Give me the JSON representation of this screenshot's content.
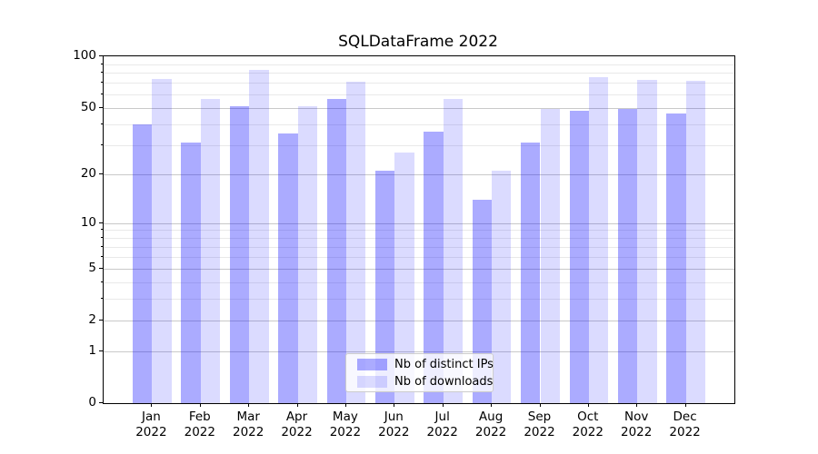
{
  "title": "SQLDataFrame 2022",
  "colors": {
    "distinct_ips_fill": "rgba(0,0,255,0.33)",
    "downloads_fill": "rgba(0,0,255,0.14)",
    "distinct_ips_hex": "#aaaaf8",
    "downloads_hex": "#dcdcfa",
    "major_grid": "#c9c9c9",
    "minor_grid": "#e9e9e9",
    "axis": "#000000"
  },
  "legend": {
    "entries": [
      "Nb of distinct IPs",
      "Nb of downloads"
    ]
  },
  "chart_data": {
    "type": "bar",
    "title": "SQLDataFrame 2022",
    "categories": [
      "Jan 2022",
      "Feb 2022",
      "Mar 2022",
      "Apr 2022",
      "May 2022",
      "Jun 2022",
      "Jul 2022",
      "Aug 2022",
      "Sep 2022",
      "Oct 2022",
      "Nov 2022",
      "Dec 2022"
    ],
    "series": [
      {
        "name": "Nb of distinct IPs",
        "values": [
          40,
          31,
          51,
          35,
          56,
          21,
          36,
          14,
          31,
          48,
          49,
          46
        ]
      },
      {
        "name": "Nb of downloads",
        "values": [
          74,
          56,
          83,
          51,
          71,
          27,
          56,
          21,
          49,
          76,
          73,
          72
        ]
      }
    ],
    "xlabel": "",
    "ylabel": "",
    "y_scale": "log10(value+1)",
    "ylim": [
      0,
      100
    ],
    "y_major_ticks": [
      0,
      1,
      2,
      5,
      10,
      20,
      50,
      100
    ],
    "y_minor_ticks": [
      3,
      4,
      6,
      7,
      8,
      9,
      30,
      40,
      60,
      70,
      80,
      90
    ],
    "grid": "both, horizontal only",
    "legend_position": "lower center",
    "bar_width_units": 0.4
  }
}
